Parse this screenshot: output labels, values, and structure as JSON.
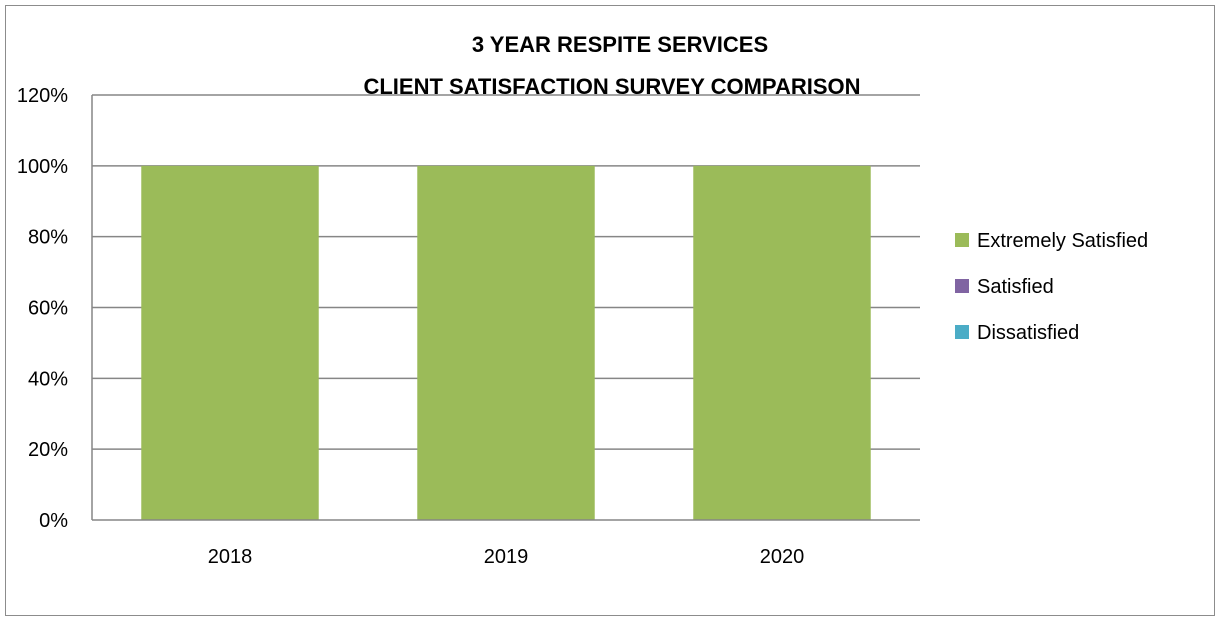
{
  "chart_data": {
    "type": "bar",
    "stacked": true,
    "title_lines": [
      "3 YEAR RESPITE SERVICES",
      "CLIENT SATISFACTION SURVEY COMPARISON"
    ],
    "categories": [
      "2018",
      "2019",
      "2020"
    ],
    "series": [
      {
        "name": "Extremely Satisfied",
        "values": [
          1.0,
          1.0,
          1.0
        ],
        "color": "#9bbb59"
      },
      {
        "name": "Satisfied",
        "values": [
          0,
          0,
          0
        ],
        "color": "#8064a2"
      },
      {
        "name": "Dissatisfied",
        "values": [
          0,
          0,
          0
        ],
        "color": "#4bacc6"
      }
    ],
    "y_ticks": [
      {
        "value": 0,
        "label": "0%"
      },
      {
        "value": 0.2,
        "label": "20%"
      },
      {
        "value": 0.4,
        "label": "40%"
      },
      {
        "value": 0.6,
        "label": "60%"
      },
      {
        "value": 0.8,
        "label": "80%"
      },
      {
        "value": 1.0,
        "label": "100%"
      },
      {
        "value": 1.2,
        "label": "120%"
      }
    ],
    "ylim": [
      0,
      1.2
    ],
    "grid": true,
    "legend_position": "right",
    "gridline_color": "#868686"
  }
}
